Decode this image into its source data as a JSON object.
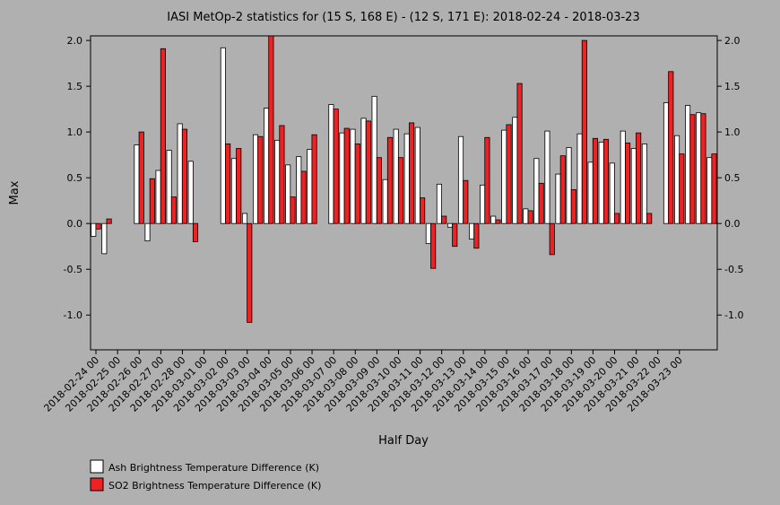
{
  "chart_data": {
    "type": "bar",
    "title": "IASI MetOp-2 statistics for (15 S, 168 E) - (12 S, 171 E): 2018-02-24 - 2018-03-23",
    "xlabel": "Half Day",
    "ylabel": "Max",
    "ylim": [
      -1.38,
      2.05
    ],
    "yticks": [
      "2.0",
      "1.5",
      "1.0",
      "0.5",
      "0.0",
      "-0.5",
      "-1.0"
    ],
    "ytick_values": [
      2.0,
      1.5,
      1.0,
      0.5,
      0.0,
      -0.5,
      -1.0
    ],
    "xtick_labels": [
      "2018-02-24 00",
      "2018-02-25 00",
      "2018-02-26 00",
      "2018-02-27 00",
      "2018-02-28 00",
      "2018-03-01 00",
      "2018-03-02 00",
      "2018-03-03 00",
      "2018-03-04 00",
      "2018-03-05 00",
      "2018-03-06 00",
      "2018-03-07 00",
      "2018-03-08 00",
      "2018-03-09 00",
      "2018-03-10 00",
      "2018-03-11 00",
      "2018-03-12 00",
      "2018-03-13 00",
      "2018-03-14 00",
      "2018-03-15 00",
      "2018-03-16 00",
      "2018-03-17 00",
      "2018-03-18 00",
      "2018-03-19 00",
      "2018-03-20 00",
      "2018-03-21 00",
      "2018-03-22 00",
      "2018-03-23 00"
    ],
    "legend_position": "bottom-left",
    "series": [
      {
        "name": "Ash Brightness Temperature Difference (K)",
        "color": "#ffffff",
        "values": [
          -0.14,
          -0.33,
          null,
          null,
          0.86,
          -0.19,
          0.58,
          0.8,
          1.09,
          0.68,
          null,
          null,
          1.92,
          0.71,
          0.11,
          0.97,
          1.26,
          0.91,
          0.64,
          0.73,
          0.81,
          null,
          1.3,
          0.99,
          1.03,
          1.15,
          1.39,
          0.48,
          1.03,
          0.98,
          1.05,
          -0.22,
          0.43,
          -0.04,
          0.95,
          -0.17,
          0.42,
          0.08,
          1.02,
          1.16,
          0.16,
          0.71,
          1.01,
          0.54,
          0.83,
          0.98,
          0.67,
          0.89,
          0.66,
          1.01,
          0.82,
          0.87,
          null,
          1.32,
          0.96,
          1.29,
          1.21,
          0.72
        ]
      },
      {
        "name": "SO2 Brightness Temperature Difference (K)",
        "color": "#ee2222",
        "values": [
          -0.06,
          0.05,
          null,
          null,
          1.0,
          0.49,
          1.91,
          0.29,
          1.03,
          -0.2,
          null,
          null,
          0.87,
          0.82,
          -1.08,
          0.95,
          2.05,
          1.07,
          0.29,
          0.57,
          0.97,
          null,
          1.25,
          1.04,
          0.87,
          1.12,
          0.72,
          0.94,
          0.72,
          1.1,
          0.28,
          -0.49,
          0.08,
          -0.25,
          0.47,
          -0.27,
          0.94,
          0.04,
          1.08,
          1.53,
          0.14,
          0.44,
          -0.34,
          0.74,
          0.37,
          2.0,
          0.93,
          0.92,
          0.11,
          0.88,
          0.99,
          0.11,
          null,
          1.66,
          0.76,
          1.19,
          1.2,
          0.76
        ]
      }
    ]
  }
}
